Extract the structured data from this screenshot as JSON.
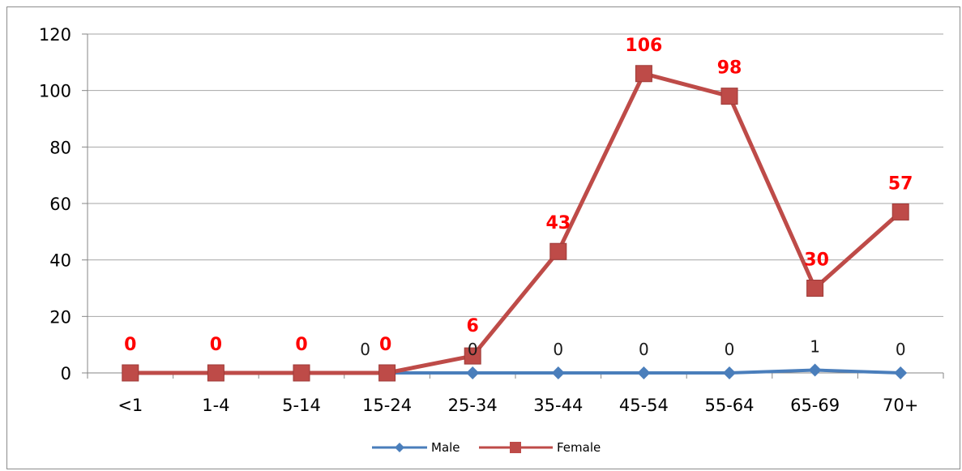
{
  "chart_data": {
    "type": "line",
    "title": "",
    "xlabel": "",
    "ylabel": "",
    "categories": [
      "<1",
      "1-4",
      "5-14",
      "15-24",
      "25-34",
      "35-44",
      "45-54",
      "55-64",
      "65-69",
      "70+"
    ],
    "ylim": [
      0,
      120
    ],
    "yticks": [
      "0",
      "20",
      "40",
      "60",
      "80",
      "100",
      "120"
    ],
    "grid": true,
    "legend_position": "bottom",
    "series": [
      {
        "name": "Male",
        "color": "#4a7ebb",
        "marker": "diamond",
        "values": [
          null,
          null,
          null,
          0,
          0,
          0,
          0,
          0,
          1,
          0
        ],
        "labels": [
          "",
          "",
          "",
          "0",
          "0",
          "0",
          "0",
          "0",
          "1",
          "0"
        ]
      },
      {
        "name": "Female",
        "color": "#be4b48",
        "marker": "square",
        "values": [
          0,
          0,
          0,
          0,
          6,
          43,
          106,
          98,
          30,
          57
        ],
        "labels": [
          "0",
          "0",
          "0",
          "0",
          "6",
          "43",
          "106",
          "98",
          "30",
          "57"
        ]
      }
    ]
  }
}
